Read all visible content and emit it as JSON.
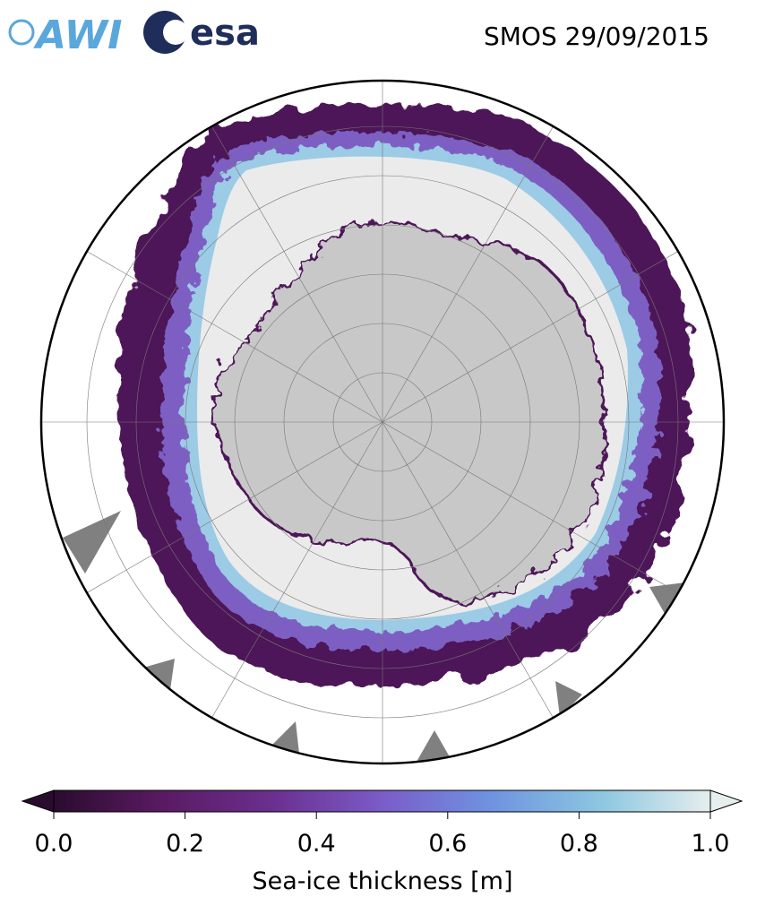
{
  "header": {
    "logos": [
      "AWI",
      "esa"
    ],
    "title": "SMOS 29/09/2015"
  },
  "colorbar": {
    "label": "Sea-ice thickness [m]",
    "lim": [
      0,
      1
    ],
    "ticks": [
      {
        "value": 0,
        "label": "0.0"
      },
      0.2,
      0.4,
      0.6,
      0.8,
      {
        "value": 1,
        "label": "1.0"
      }
    ],
    "colors": [
      "#2a0c2e",
      "#5a1a62",
      "#6b2f8f",
      "#7a5cc9",
      "#6f93e0",
      "#8cc7e0",
      "#e6eeee"
    ]
  }
}
